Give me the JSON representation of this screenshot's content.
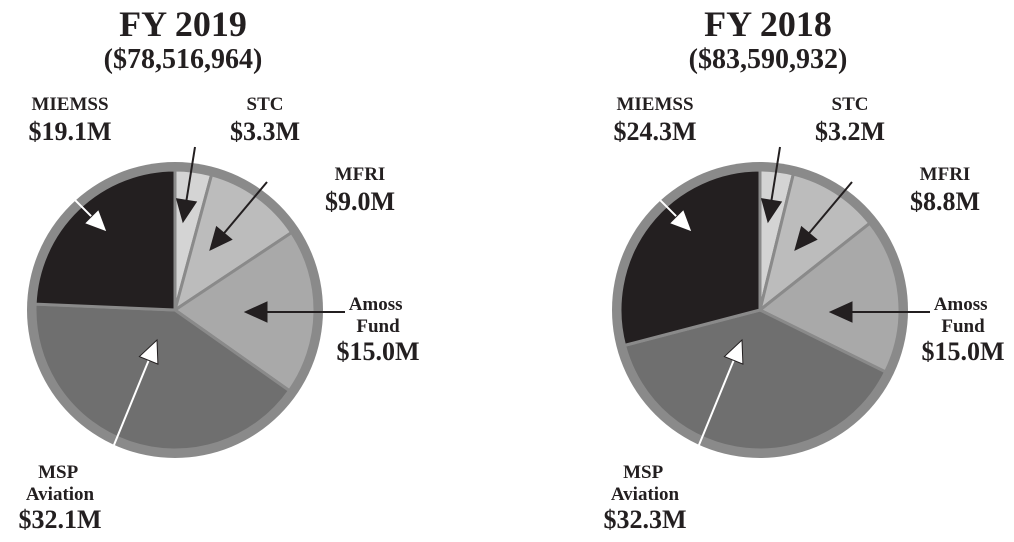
{
  "chart_data": [
    {
      "type": "pie",
      "title": "FY 2019",
      "subtitle": "($78,516,964)",
      "categories": [
        "STC",
        "MFRI",
        "Amoss Fund",
        "MSP Aviation",
        "MIEMSS"
      ],
      "values": [
        3.3,
        9.0,
        15.0,
        32.1,
        19.1
      ],
      "value_labels": [
        "$3.3M",
        "$9.0M",
        "$15.0M",
        "$32.1M",
        "$19.1M"
      ],
      "colors": [
        "#d4d4d4",
        "#bcbcbc",
        "#a9a9a9",
        "#6f6f6f",
        "#231f20"
      ]
    },
    {
      "type": "pie",
      "title": "FY 2018",
      "subtitle": "($83,590,932)",
      "categories": [
        "STC",
        "MFRI",
        "Amoss Fund",
        "MSP Aviation",
        "MIEMSS"
      ],
      "values": [
        3.2,
        8.8,
        15.0,
        32.3,
        24.3
      ],
      "value_labels": [
        "$3.2M",
        "$8.8M",
        "$15.0M",
        "$32.3M",
        "$24.3M"
      ],
      "colors": [
        "#d4d4d4",
        "#bcbcbc",
        "#a9a9a9",
        "#6f6f6f",
        "#231f20"
      ]
    }
  ]
}
